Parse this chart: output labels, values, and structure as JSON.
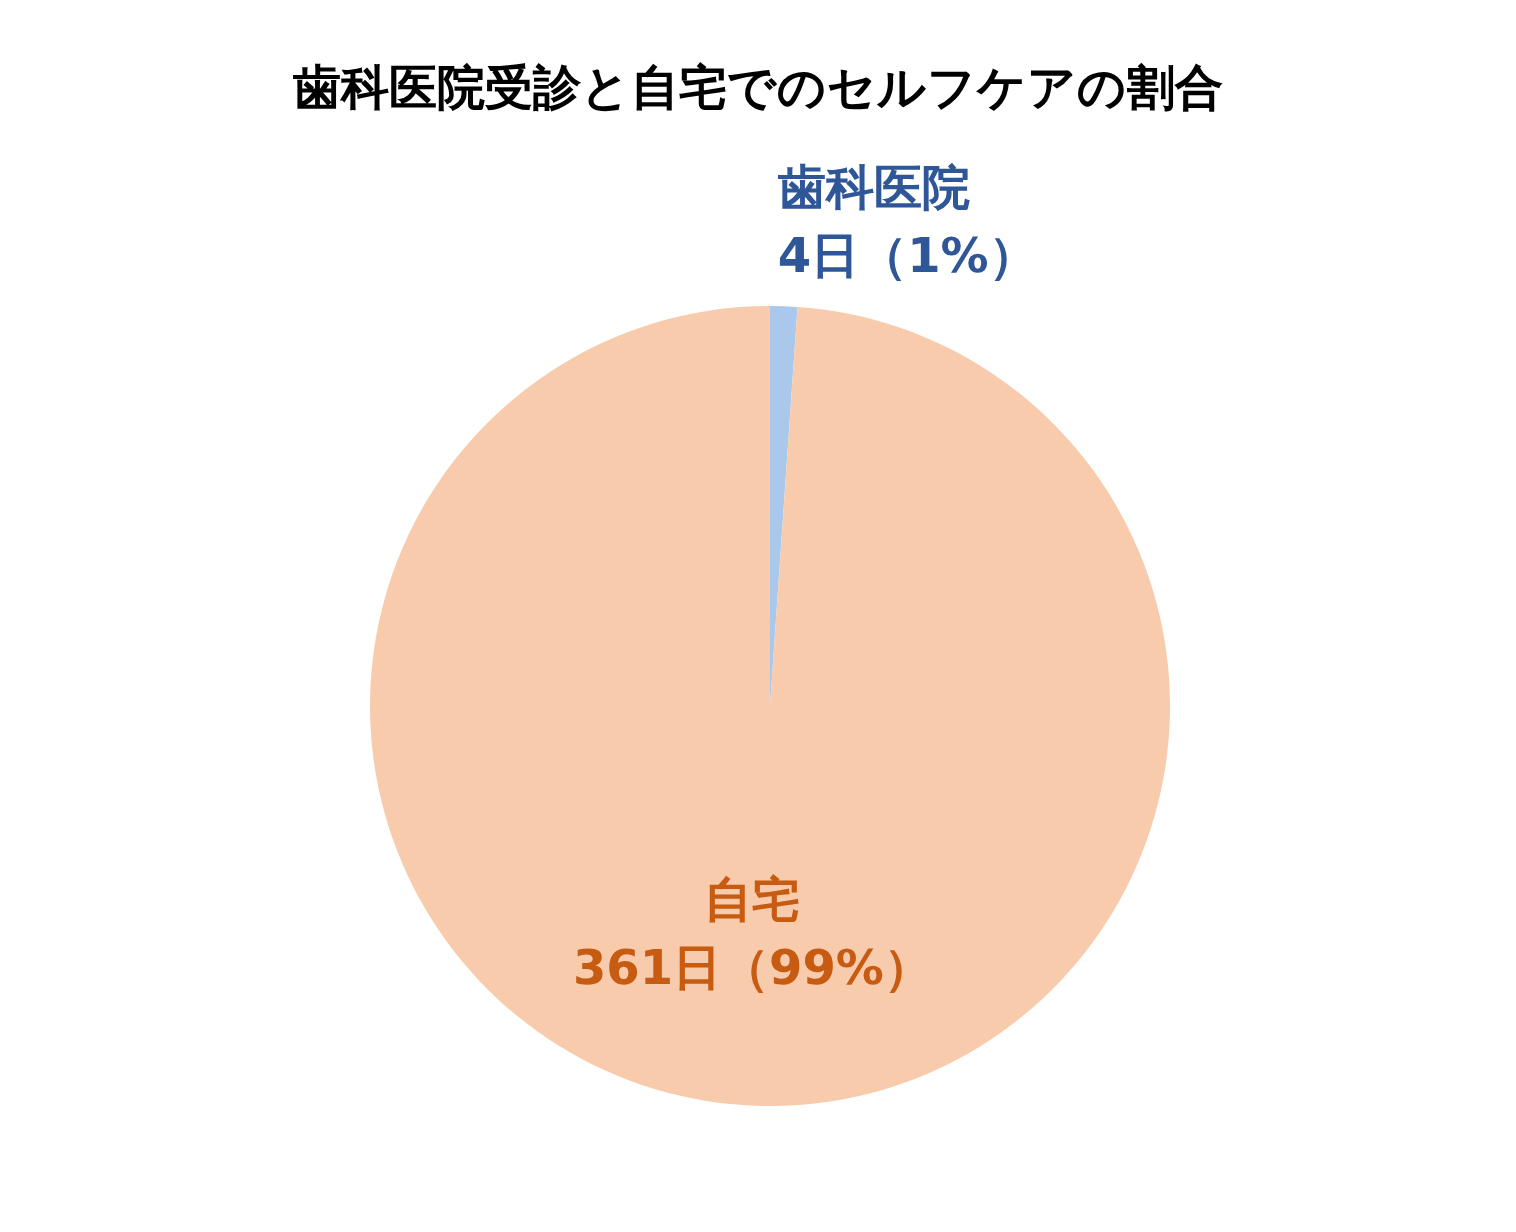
{
  "chart_data": {
    "type": "pie",
    "title": "歯科医院受診と自宅でのセルフケアの割合",
    "categories": [
      "歯科医院",
      "自宅"
    ],
    "values": [
      4,
      361
    ],
    "value_labels": [
      "4日（1%）",
      "361日（99%）"
    ],
    "colors": [
      "#a9c8ec",
      "#f8cbad"
    ],
    "legend": false
  }
}
